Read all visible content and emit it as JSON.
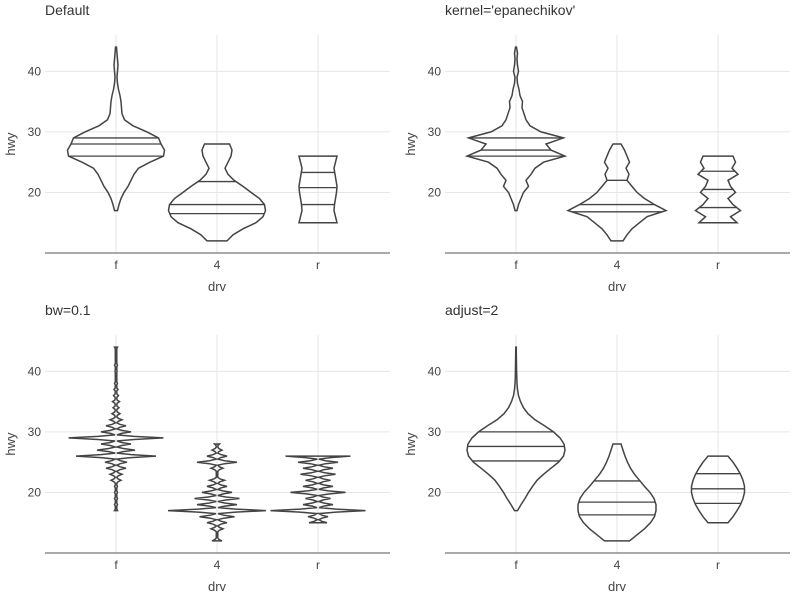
{
  "chart_data": [
    {
      "type": "violin",
      "title": "Default",
      "xlabel": "drv",
      "ylabel": "hwy",
      "categories": [
        "f",
        "4",
        "r"
      ],
      "yticks": [
        20,
        30,
        40
      ],
      "ylim": [
        10,
        46
      ],
      "grid": true,
      "violins": [
        {
          "category": "f",
          "ymin": 17,
          "ymax": 44,
          "quantiles": [
            26,
            28,
            29
          ],
          "profile": [
            [
              17,
              0.03
            ],
            [
              18,
              0.06
            ],
            [
              19,
              0.1
            ],
            [
              20,
              0.16
            ],
            [
              21,
              0.24
            ],
            [
              22,
              0.3
            ],
            [
              23,
              0.36
            ],
            [
              24,
              0.45
            ],
            [
              25,
              0.68
            ],
            [
              26,
              0.95
            ],
            [
              27,
              0.97
            ],
            [
              28,
              0.9
            ],
            [
              29,
              0.85
            ],
            [
              30,
              0.62
            ],
            [
              31,
              0.34
            ],
            [
              32,
              0.17
            ],
            [
              33,
              0.12
            ],
            [
              34,
              0.11
            ],
            [
              35,
              0.1
            ],
            [
              36,
              0.08
            ],
            [
              37,
              0.05
            ],
            [
              38,
              0.03
            ],
            [
              39,
              0.02
            ],
            [
              40,
              0.03
            ],
            [
              41,
              0.04
            ],
            [
              42,
              0.03
            ],
            [
              43,
              0.02
            ],
            [
              44,
              0.01
            ]
          ]
        },
        {
          "category": "4",
          "ymin": 12,
          "ymax": 28,
          "quantiles": [
            16.5,
            18,
            21.8
          ],
          "profile": [
            [
              12,
              0.2
            ],
            [
              13,
              0.32
            ],
            [
              14,
              0.52
            ],
            [
              15,
              0.78
            ],
            [
              16,
              0.92
            ],
            [
              17,
              0.97
            ],
            [
              18,
              0.95
            ],
            [
              19,
              0.85
            ],
            [
              20,
              0.68
            ],
            [
              21,
              0.52
            ],
            [
              22,
              0.34
            ],
            [
              23,
              0.22
            ],
            [
              24,
              0.16
            ],
            [
              25,
              0.22
            ],
            [
              26,
              0.28
            ],
            [
              27,
              0.3
            ],
            [
              28,
              0.25
            ]
          ]
        },
        {
          "category": "r",
          "ymin": 15,
          "ymax": 26,
          "quantiles": [
            18,
            20.8,
            23.3
          ],
          "profile": [
            [
              15,
              0.38
            ],
            [
              16,
              0.35
            ],
            [
              17,
              0.32
            ],
            [
              18,
              0.33
            ],
            [
              19,
              0.35
            ],
            [
              20,
              0.37
            ],
            [
              21,
              0.38
            ],
            [
              22,
              0.36
            ],
            [
              23,
              0.34
            ],
            [
              24,
              0.32
            ],
            [
              25,
              0.35
            ],
            [
              26,
              0.38
            ]
          ]
        }
      ]
    },
    {
      "type": "violin",
      "title": "kernel='epanechikov'",
      "xlabel": "drv",
      "ylabel": "hwy",
      "categories": [
        "f",
        "4",
        "r"
      ],
      "yticks": [
        20,
        30,
        40
      ],
      "ylim": [
        10,
        46
      ],
      "grid": true,
      "violins": [
        {
          "category": "f",
          "ymin": 17,
          "ymax": 44,
          "quantiles": [
            26,
            27,
            29
          ],
          "profile": [
            [
              17,
              0.02
            ],
            [
              18,
              0.05
            ],
            [
              19,
              0.1
            ],
            [
              20,
              0.15
            ],
            [
              21,
              0.25
            ],
            [
              22,
              0.2
            ],
            [
              23,
              0.3
            ],
            [
              24,
              0.38
            ],
            [
              25,
              0.55
            ],
            [
              26,
              0.98
            ],
            [
              27,
              0.7
            ],
            [
              28,
              0.6
            ],
            [
              29,
              0.95
            ],
            [
              30,
              0.5
            ],
            [
              31,
              0.28
            ],
            [
              32,
              0.2
            ],
            [
              33,
              0.16
            ],
            [
              34,
              0.12
            ],
            [
              35,
              0.13
            ],
            [
              36,
              0.08
            ],
            [
              37,
              0.06
            ],
            [
              38,
              0.03
            ],
            [
              39,
              0.02
            ],
            [
              40,
              0.05
            ],
            [
              41,
              0.03
            ],
            [
              42,
              0.02
            ],
            [
              43,
              0.03
            ],
            [
              44,
              0.01
            ]
          ]
        },
        {
          "category": "4",
          "ymin": 12,
          "ymax": 28,
          "quantiles": [
            16.8,
            18,
            22
          ],
          "profile": [
            [
              12,
              0.12
            ],
            [
              13,
              0.2
            ],
            [
              14,
              0.3
            ],
            [
              15,
              0.45
            ],
            [
              16,
              0.6
            ],
            [
              17,
              0.98
            ],
            [
              18,
              0.75
            ],
            [
              19,
              0.55
            ],
            [
              20,
              0.4
            ],
            [
              21,
              0.3
            ],
            [
              22,
              0.2
            ],
            [
              23,
              0.24
            ],
            [
              24,
              0.18
            ],
            [
              25,
              0.25
            ],
            [
              26,
              0.2
            ],
            [
              27,
              0.15
            ],
            [
              28,
              0.08
            ]
          ]
        },
        {
          "category": "r",
          "ymin": 15,
          "ymax": 26,
          "quantiles": [
            17.5,
            20.5,
            23.5
          ],
          "profile": [
            [
              15,
              0.38
            ],
            [
              16,
              0.25
            ],
            [
              17,
              0.45
            ],
            [
              18,
              0.3
            ],
            [
              19,
              0.2
            ],
            [
              20,
              0.35
            ],
            [
              21,
              0.25
            ],
            [
              22,
              0.2
            ],
            [
              23,
              0.4
            ],
            [
              24,
              0.28
            ],
            [
              25,
              0.35
            ],
            [
              26,
              0.3
            ]
          ]
        }
      ]
    },
    {
      "type": "violin",
      "title": "bw=0.1",
      "xlabel": "drv",
      "ylabel": "hwy",
      "categories": [
        "f",
        "4",
        "r"
      ],
      "yticks": [
        20,
        30,
        40
      ],
      "ylim": [
        10,
        46
      ],
      "grid": true,
      "violins": [
        {
          "category": "f",
          "ymin": 17,
          "ymax": 44,
          "quantiles": [],
          "spikes": [
            [
              17,
              0.03
            ],
            [
              18,
              0.03
            ],
            [
              19,
              0.03
            ],
            [
              20,
              0.03
            ],
            [
              21,
              0.03
            ],
            [
              22,
              0.1
            ],
            [
              23,
              0.12
            ],
            [
              24,
              0.2
            ],
            [
              25,
              0.22
            ],
            [
              26,
              0.8
            ],
            [
              27,
              0.38
            ],
            [
              28,
              0.3
            ],
            [
              29,
              0.95
            ],
            [
              30,
              0.3
            ],
            [
              31,
              0.2
            ],
            [
              32,
              0.12
            ],
            [
              33,
              0.08
            ],
            [
              34,
              0.06
            ],
            [
              35,
              0.07
            ],
            [
              36,
              0.05
            ],
            [
              37,
              0.04
            ],
            [
              38,
              0.03
            ],
            [
              40,
              0.02
            ],
            [
              41,
              0.03
            ],
            [
              44,
              0.03
            ]
          ]
        },
        {
          "category": "4",
          "ymin": 12,
          "ymax": 28,
          "quantiles": [],
          "spikes": [
            [
              12,
              0.1
            ],
            [
              14,
              0.12
            ],
            [
              15,
              0.2
            ],
            [
              16,
              0.35
            ],
            [
              17,
              0.98
            ],
            [
              18,
              0.4
            ],
            [
              19,
              0.45
            ],
            [
              20,
              0.3
            ],
            [
              21,
              0.2
            ],
            [
              22,
              0.15
            ],
            [
              24,
              0.12
            ],
            [
              25,
              0.4
            ],
            [
              26,
              0.2
            ],
            [
              27,
              0.1
            ],
            [
              28,
              0.05
            ]
          ]
        },
        {
          "category": "r",
          "ymin": 15,
          "ymax": 26,
          "quantiles": [],
          "spikes": [
            [
              15,
              0.18
            ],
            [
              16,
              0.2
            ],
            [
              17,
              0.95
            ],
            [
              18,
              0.3
            ],
            [
              19,
              0.25
            ],
            [
              20,
              0.55
            ],
            [
              21,
              0.3
            ],
            [
              22,
              0.25
            ],
            [
              23,
              0.35
            ],
            [
              24,
              0.3
            ],
            [
              25,
              0.4
            ],
            [
              26,
              0.65
            ]
          ]
        }
      ]
    },
    {
      "type": "violin",
      "title": "adjust=2",
      "xlabel": "drv",
      "ylabel": "hwy",
      "categories": [
        "f",
        "4",
        "r"
      ],
      "yticks": [
        20,
        30,
        40
      ],
      "ylim": [
        10,
        46
      ],
      "grid": true,
      "violins": [
        {
          "category": "f",
          "ymin": 17,
          "ymax": 44,
          "quantiles": [
            25.2,
            27.6,
            30
          ],
          "profile": [
            [
              17,
              0.03
            ],
            [
              18,
              0.1
            ],
            [
              19,
              0.18
            ],
            [
              20,
              0.25
            ],
            [
              21,
              0.33
            ],
            [
              22,
              0.42
            ],
            [
              23,
              0.55
            ],
            [
              24,
              0.7
            ],
            [
              25,
              0.85
            ],
            [
              26,
              0.95
            ],
            [
              27,
              0.98
            ],
            [
              28,
              0.96
            ],
            [
              29,
              0.88
            ],
            [
              30,
              0.75
            ],
            [
              31,
              0.57
            ],
            [
              32,
              0.38
            ],
            [
              33,
              0.24
            ],
            [
              34,
              0.15
            ],
            [
              35,
              0.09
            ],
            [
              36,
              0.05
            ],
            [
              37,
              0.03
            ],
            [
              38,
              0.02
            ],
            [
              39,
              0.015
            ],
            [
              40,
              0.012
            ],
            [
              41,
              0.01
            ],
            [
              42,
              0.008
            ],
            [
              43,
              0.006
            ],
            [
              44,
              0.005
            ]
          ]
        },
        {
          "category": "4",
          "ymin": 12,
          "ymax": 28,
          "quantiles": [
            16.3,
            18.4,
            21.9
          ],
          "profile": [
            [
              12,
              0.25
            ],
            [
              13,
              0.4
            ],
            [
              14,
              0.55
            ],
            [
              15,
              0.67
            ],
            [
              16,
              0.75
            ],
            [
              17,
              0.78
            ],
            [
              18,
              0.78
            ],
            [
              19,
              0.74
            ],
            [
              20,
              0.66
            ],
            [
              21,
              0.55
            ],
            [
              22,
              0.45
            ],
            [
              23,
              0.35
            ],
            [
              24,
              0.27
            ],
            [
              25,
              0.21
            ],
            [
              26,
              0.16
            ],
            [
              27,
              0.12
            ],
            [
              28,
              0.08
            ]
          ]
        },
        {
          "category": "r",
          "ymin": 15,
          "ymax": 26,
          "quantiles": [
            18.2,
            20.6,
            23.1
          ],
          "profile": [
            [
              15,
              0.2
            ],
            [
              16,
              0.3
            ],
            [
              17,
              0.38
            ],
            [
              18,
              0.45
            ],
            [
              19,
              0.5
            ],
            [
              20,
              0.53
            ],
            [
              21,
              0.53
            ],
            [
              22,
              0.5
            ],
            [
              23,
              0.45
            ],
            [
              24,
              0.38
            ],
            [
              25,
              0.3
            ],
            [
              26,
              0.2
            ]
          ]
        }
      ]
    }
  ]
}
